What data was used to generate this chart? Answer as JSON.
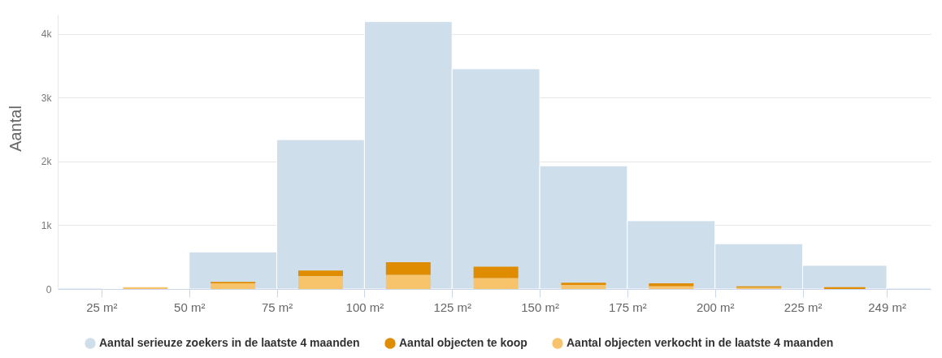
{
  "chart_data": {
    "type": "histogram",
    "ylabel": "Aantal",
    "bins": [
      0,
      25,
      50,
      75,
      100,
      125,
      150,
      175,
      200,
      225,
      249,
      274
    ],
    "xlim": [
      12.5,
      261.5
    ],
    "xticks": [
      {
        "value": 25,
        "label": "25 m²"
      },
      {
        "value": 50,
        "label": "50 m²"
      },
      {
        "value": 75,
        "label": "75 m²"
      },
      {
        "value": 100,
        "label": "100 m²"
      },
      {
        "value": 125,
        "label": "125 m²"
      },
      {
        "value": 150,
        "label": "150 m²"
      },
      {
        "value": 175,
        "label": "175 m²"
      },
      {
        "value": 200,
        "label": "200 m²"
      },
      {
        "value": 225,
        "label": "225 m²"
      },
      {
        "value": 249,
        "label": "249 m²"
      }
    ],
    "ylim": [
      0,
      4300
    ],
    "yticks": [
      0,
      {
        "value": 1000,
        "label": "1k"
      },
      {
        "value": 2000,
        "label": "2k"
      },
      {
        "value": 3000,
        "label": "3k"
      },
      {
        "value": 4000,
        "label": "4k"
      }
    ],
    "grid": "y",
    "legend": "bottom",
    "series": [
      {
        "name": "Aantal serieuze zoekers in de laatste 4 maanden",
        "color": "#cfdeeb",
        "values": [
          20,
          null,
          580,
          2340,
          4190,
          3450,
          1930,
          1070,
          710,
          370,
          20
        ]
      },
      {
        "name": "Aantal objecten te koop",
        "color": "#e08c00",
        "base": [
          null,
          null,
          90,
          200,
          220,
          170,
          60,
          40,
          20,
          0,
          null
        ],
        "values": [
          null,
          null,
          20,
          90,
          200,
          180,
          40,
          50,
          20,
          30,
          null
        ]
      },
      {
        "name": "Aantal objecten verkocht in de laatste 4 maanden",
        "color": "#f7c46b",
        "values": [
          null,
          30,
          90,
          200,
          220,
          170,
          60,
          40,
          20,
          null,
          null
        ]
      }
    ]
  }
}
